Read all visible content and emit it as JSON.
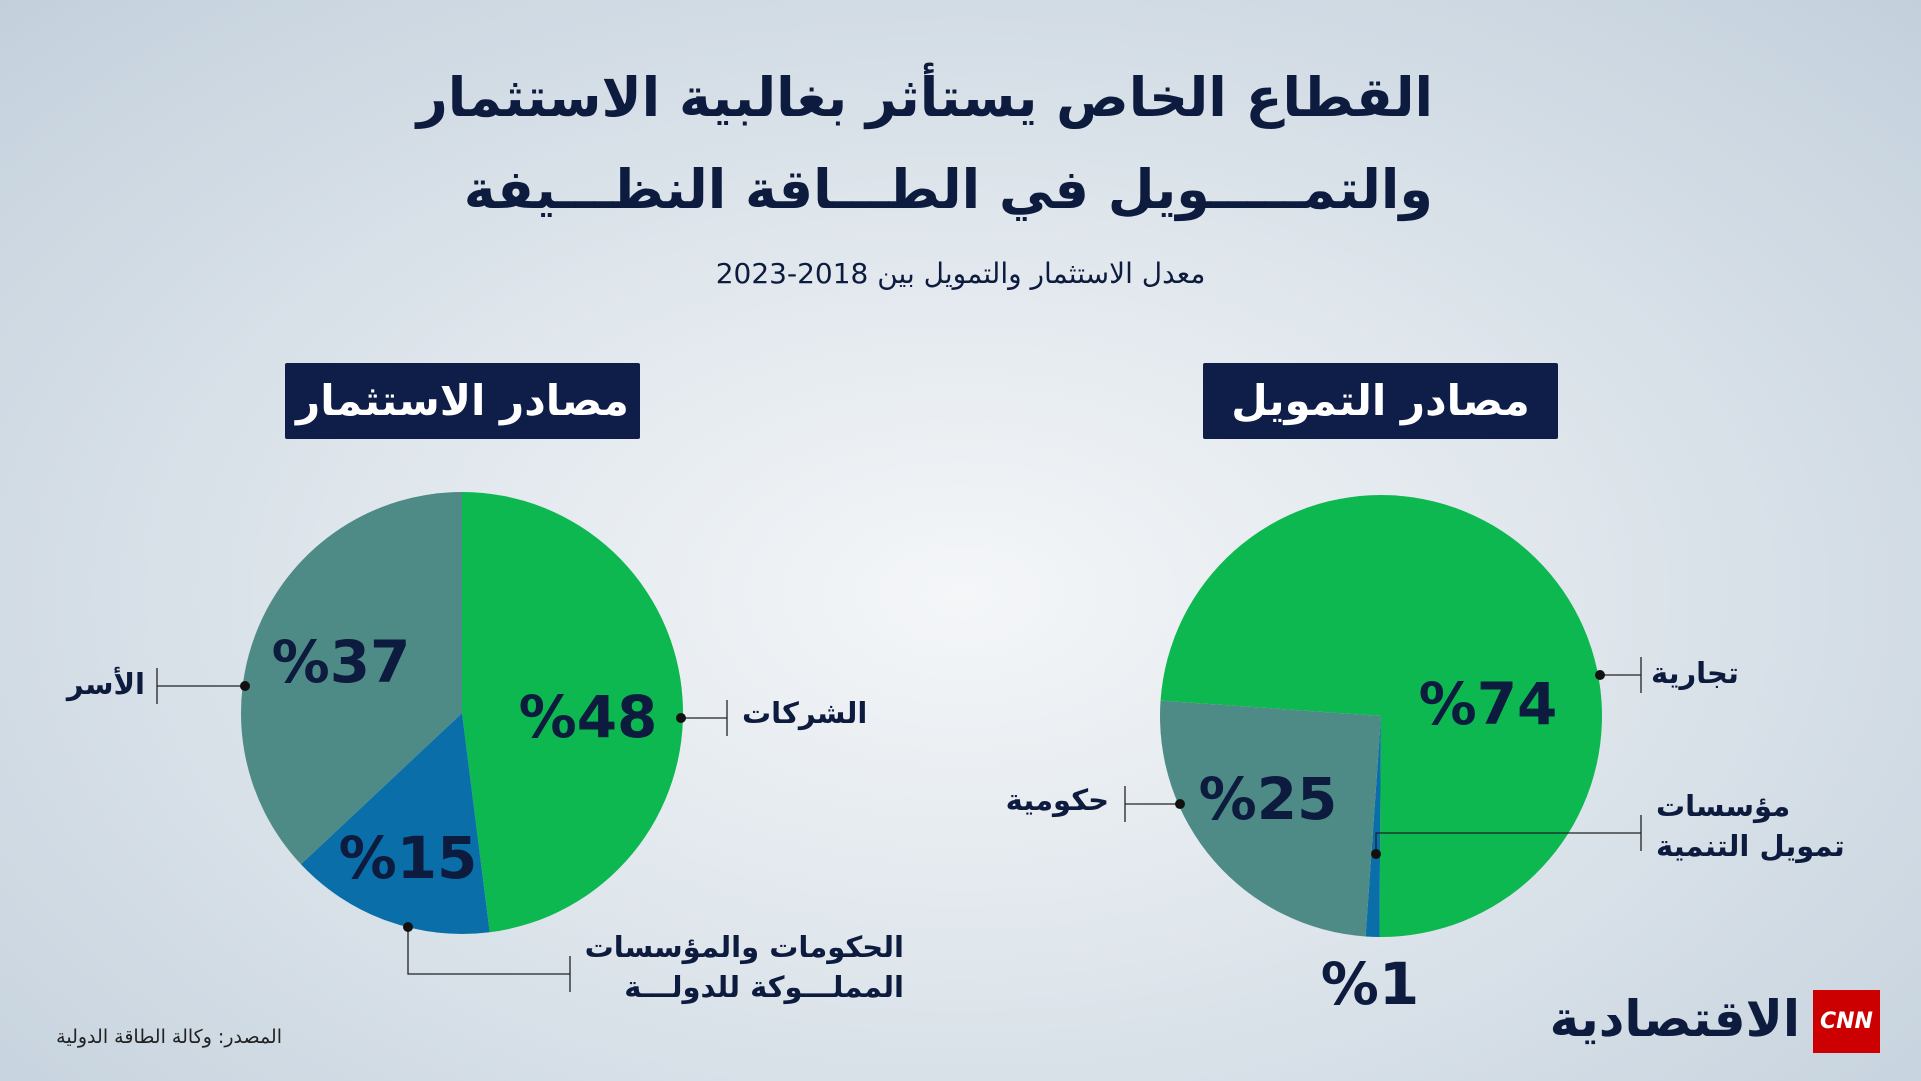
{
  "title": "القطاع الخاص يستأثر بغالبية الاستثمار\nوالتمـــــويل في الطـــاقة النظـــيفة",
  "subtitle": "معدل الاستثمار والتمويل بين 2018-2023",
  "chart_data": [
    {
      "type": "pie",
      "title": "مصادر الاستثمار",
      "categories": [
        "الشركات",
        "الحكومات والمؤسسات\nالمملـــوكة للدولـــة",
        "الأسر"
      ],
      "values": [
        48,
        15,
        37
      ],
      "value_labels": [
        "%48",
        "%15",
        "%37"
      ],
      "colors": [
        "#0cb84f",
        "#0a6fa8",
        "#4e8b86"
      ]
    },
    {
      "type": "pie",
      "title": "مصادر التمويل",
      "categories": [
        "تجارية",
        "مؤسسات\nتمويل التنمية",
        "حكومية"
      ],
      "values": [
        74,
        1,
        25
      ],
      "value_labels": [
        "%74",
        "%1",
        "%25"
      ],
      "colors": [
        "#0cb84f",
        "#0a6fa8",
        "#4e8b86"
      ]
    }
  ],
  "source": "المصدر: وكالة الطاقة الدولية",
  "logo": {
    "brand": "CNN",
    "name": "الاقتصادية"
  }
}
